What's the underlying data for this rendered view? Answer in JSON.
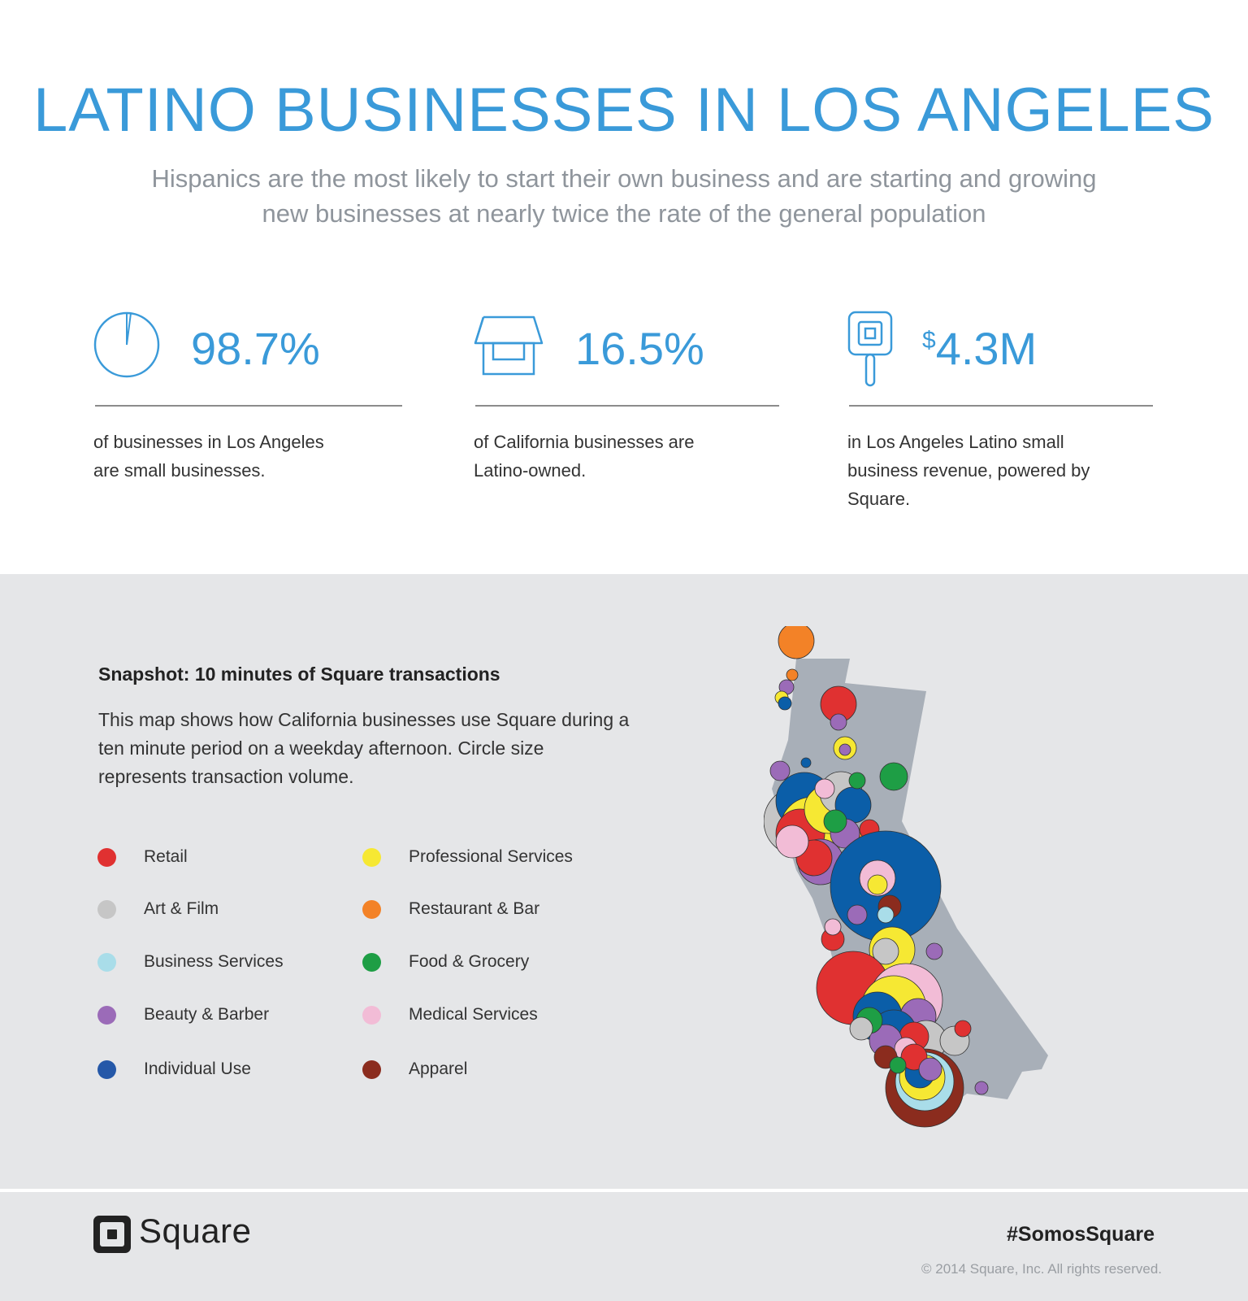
{
  "header": {
    "title": "LATINO BUSINESSES IN LOS ANGELES",
    "subtitle": "Hispanics are the most likely to start their own business and are starting and growing new businesses at nearly twice the rate of the general population"
  },
  "stats": [
    {
      "value": "98.7%",
      "icon": "pie-chart-icon",
      "description": "of businesses in Los Angeles are small businesses."
    },
    {
      "value": "16.5%",
      "icon": "storefront-icon",
      "description": "of California businesses are Latino-owned."
    },
    {
      "currency": "$",
      "value": "4.3M",
      "icon": "card-reader-icon",
      "description": "in Los Angeles Latino small business revenue, powered by Square."
    }
  ],
  "snapshot": {
    "title": "Snapshot: 10 minutes of Square transactions",
    "description": "This map shows how California businesses use Square during a ten minute period on a weekday afternoon. Circle size represents transaction volume."
  },
  "legend": [
    {
      "label": "Retail",
      "color": "#e03131"
    },
    {
      "label": "Art & Film",
      "color": "#c6c6c6"
    },
    {
      "label": "Business Services",
      "color": "#a9dde9"
    },
    {
      "label": "Beauty & Barber",
      "color": "#9b6bb8"
    },
    {
      "label": "Individual Use",
      "color": "#2558a8"
    },
    {
      "label": "Professional Services",
      "color": "#f6e833"
    },
    {
      "label": "Restaurant & Bar",
      "color": "#f38227"
    },
    {
      "label": "Food & Grocery",
      "color": "#1e9e45"
    },
    {
      "label": "Medical Services",
      "color": "#f2bcd6"
    },
    {
      "label": "Apparel",
      "color": "#8b2c1e"
    }
  ],
  "colors": {
    "accent": "#3a9ad9",
    "map_land": "#a8afb8",
    "panel": "#e5e6e8"
  },
  "footer": {
    "logo_text": "Square",
    "hashtag": "#SomosSquare",
    "copyright": "© 2014 Square, Inc. All rights reserved."
  }
}
